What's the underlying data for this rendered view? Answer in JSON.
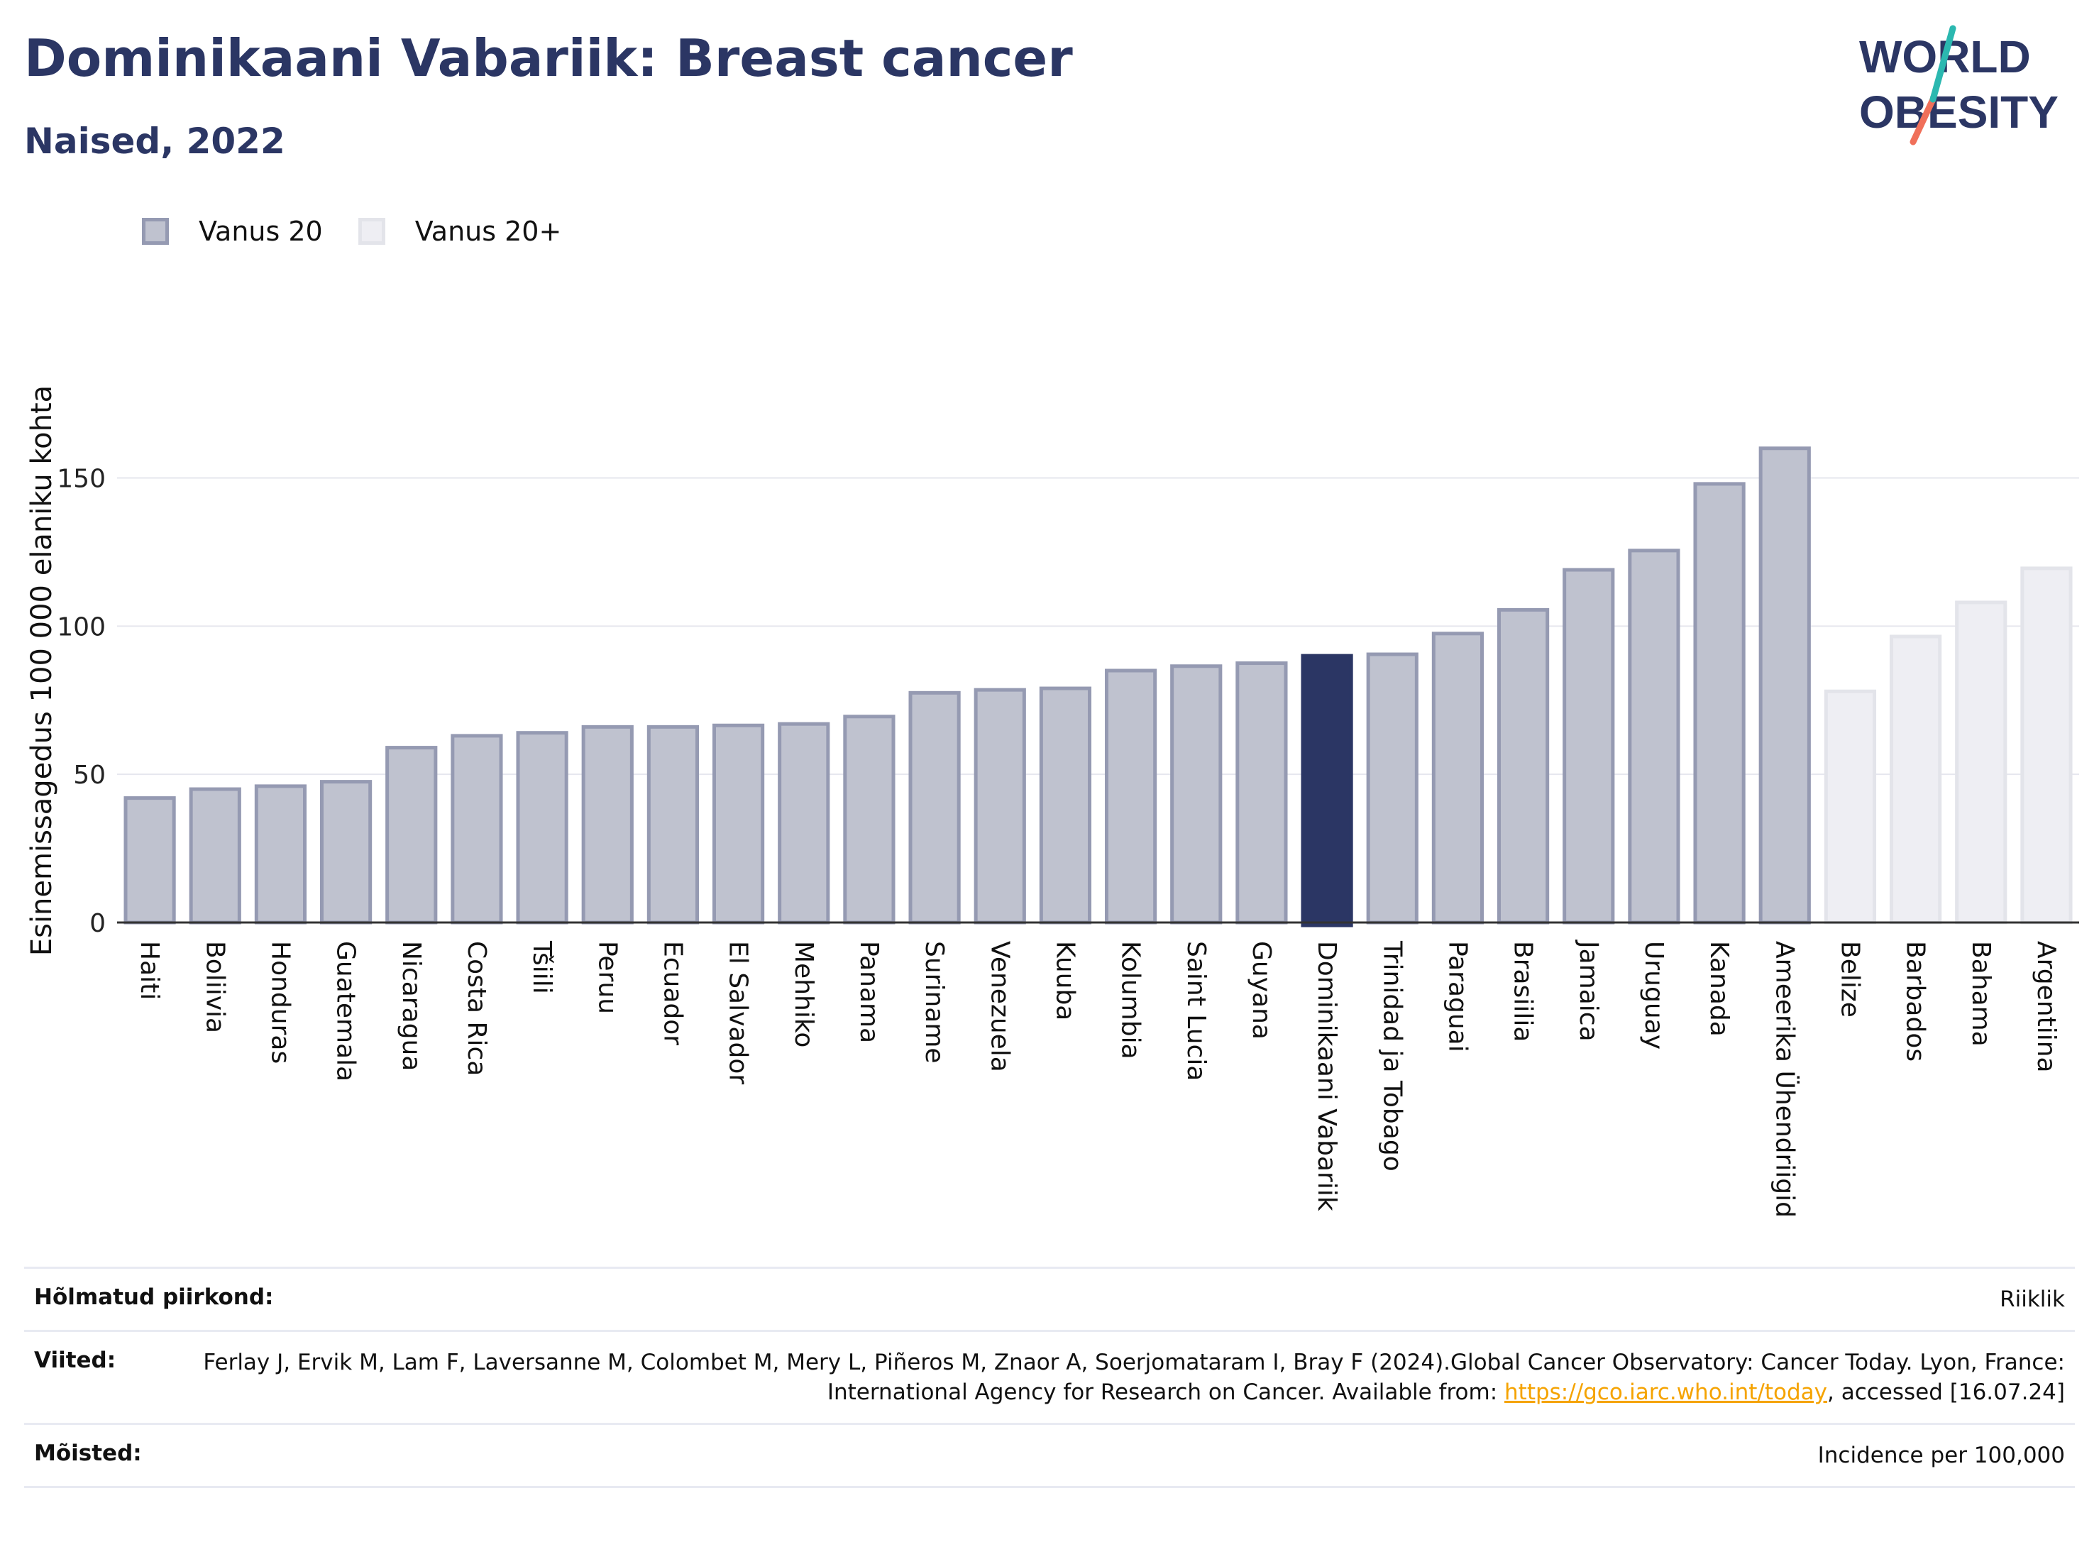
{
  "title": "Dominikaani Vabariik: Breast cancer",
  "subtitle": "Naised, 2022",
  "logo": {
    "line1": "WORLD",
    "line2": "OBESITY"
  },
  "colors": {
    "brand": "#2b3664",
    "bar_age20_fill": "#bfc2cf",
    "bar_age20_stroke": "#959ab2",
    "bar_age20plus_fill": "#eeeef3",
    "bar_age20plus_stroke": "#e3e4ea",
    "highlight": "#2b3664",
    "logo_teal": "#2bb8b0",
    "logo_coral": "#f0705a",
    "link": "#f5a300"
  },
  "legend": [
    {
      "label": "Vanus 20"
    },
    {
      "label": "Vanus 20+"
    }
  ],
  "chart_data": {
    "type": "bar",
    "title": "Dominikaani Vabariik: Breast cancer",
    "subtitle": "Naised, 2022",
    "ylabel": "Esinemissagedus 100 000 elaniku kohta",
    "xlabel": "",
    "ylim": [
      0,
      170
    ],
    "yticks": [
      0,
      50,
      100,
      150
    ],
    "grid": true,
    "legend_position": "top-left",
    "highlight": "Dominikaani Vabariik",
    "categories": [
      "Haiti",
      "Boliivia",
      "Honduras",
      "Guatemala",
      "Nicaragua",
      "Costa Rica",
      "Tšiili",
      "Peruu",
      "Ecuador",
      "El Salvador",
      "Mehhiko",
      "Panama",
      "Suriname",
      "Venezuela",
      "Kuuba",
      "Kolumbia",
      "Saint Lucia",
      "Guyana",
      "Dominikaani Vabariik",
      "Trinidad ja Tobago",
      "Paraguai",
      "Brasiilia",
      "Jamaica",
      "Uruguay",
      "Kanada",
      "Ameerika Ühendriigid",
      "Belize",
      "Barbados",
      "Bahama",
      "Argentiina"
    ],
    "values": [
      42,
      45,
      46,
      47.5,
      59,
      63,
      64,
      66,
      66,
      66.5,
      67,
      69.5,
      77.5,
      78.5,
      79,
      85,
      86.5,
      87.5,
      90,
      90.5,
      97.5,
      105.5,
      119,
      125.5,
      148,
      160,
      78,
      96.5,
      108,
      119.5
    ],
    "series_index": [
      0,
      0,
      0,
      0,
      0,
      0,
      0,
      0,
      0,
      0,
      0,
      0,
      0,
      0,
      0,
      0,
      0,
      0,
      0,
      0,
      0,
      0,
      0,
      0,
      0,
      0,
      1,
      1,
      1,
      1
    ],
    "series": [
      {
        "name": "Vanus 20"
      },
      {
        "name": "Vanus 20+"
      }
    ]
  },
  "info": {
    "region_label": "Hõlmatud piirkond:",
    "region_value": "Riiklik",
    "refs_label": "Viited:",
    "refs_text_before": "Ferlay J, Ervik M, Lam F, Laversanne M, Colombet M, Mery L, Piñeros M, Znaor A, Soerjomataram I, Bray F (2024).Global Cancer Observatory: Cancer Today. Lyon, France: International Agency for Research on Cancer. Available from: ",
    "refs_link": "https://gco.iarc.who.int/today",
    "refs_text_after": ", accessed [16.07.24]",
    "defs_label": "Mõisted:",
    "defs_value": "Incidence per 100,000"
  }
}
